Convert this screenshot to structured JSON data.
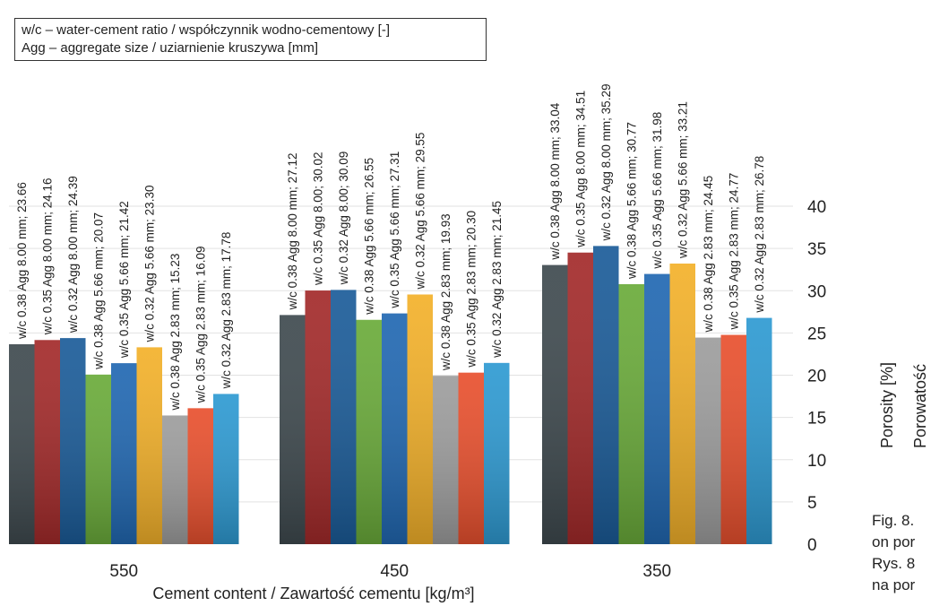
{
  "legend_box": {
    "line1": "w/c – water-cement ratio / współczynnik wodno-cementowy [-]",
    "line2": "Agg – aggregate size / uziarnienie kruszywa [mm]"
  },
  "chart_data": {
    "type": "bar",
    "xlabel": "Cement content / Zawartość cementu [kg/m³]",
    "ylabel_lines": [
      "Porosity [%]",
      "Porowatość"
    ],
    "ylim": [
      0,
      40
    ],
    "yticks": [
      0,
      5,
      10,
      15,
      20,
      25,
      30,
      35,
      40
    ],
    "grid": true,
    "colors": [
      "#3f4a4f",
      "#a32a2a",
      "#1b5c99",
      "#6aab3a",
      "#2168b2",
      "#f3b12a",
      "#9d9d9d",
      "#e8502e",
      "#2e9ad2"
    ],
    "groups": [
      {
        "category": "550",
        "bars": [
          {
            "label": "w/c 0.38 Agg 8.00 mm; 23.66",
            "value": 23.66
          },
          {
            "label": "w/c 0.35 Agg 8.00 mm; 24.16",
            "value": 24.16
          },
          {
            "label": "w/c 0.32 Agg 8.00 mm; 24.39",
            "value": 24.39
          },
          {
            "label": "w/c 0.38 Agg 5.66 mm; 20.07",
            "value": 20.07
          },
          {
            "label": "w/c 0.35 Agg 5.66 mm; 21.42",
            "value": 21.42
          },
          {
            "label": "w/c 0.32 Agg 5.66 mm; 23.30",
            "value": 23.3
          },
          {
            "label": "w/c 0.38 Agg 2.83 mm; 15.23",
            "value": 15.23
          },
          {
            "label": "w/c 0.35 Agg 2.83 mm; 16.09",
            "value": 16.09
          },
          {
            "label": "w/c 0.32 Agg 2.83 mm; 17.78",
            "value": 17.78
          }
        ]
      },
      {
        "category": "450",
        "bars": [
          {
            "label": "w/c 0.38 Agg 8.00 mm; 27.12",
            "value": 27.12
          },
          {
            "label": "w/c 0.35 Agg 8.00; 30.02",
            "value": 30.02
          },
          {
            "label": "w/c 0.32 Agg 8.00; 30.09",
            "value": 30.09
          },
          {
            "label": "w/c 0.38 Agg 5.66 mm; 26.55",
            "value": 26.55
          },
          {
            "label": "w/c 0.35 Agg 5.66 mm; 27.31",
            "value": 27.31
          },
          {
            "label": "w/c 0.32 Agg 5.66 mm; 29.55",
            "value": 29.55
          },
          {
            "label": "w/c 0.38 Agg 2.83 mm; 19.93",
            "value": 19.93
          },
          {
            "label": "w/c 0.35 Agg 2.83 mm; 20.30",
            "value": 20.3
          },
          {
            "label": "w/c 0.32 Agg 2.83 mm; 21.45",
            "value": 21.45
          }
        ]
      },
      {
        "category": "350",
        "bars": [
          {
            "label": "w/c 0.38 Agg 8.00 mm; 33.04",
            "value": 33.04
          },
          {
            "label": "w/c 0.35 Agg 8.00 mm; 34.51",
            "value": 34.51
          },
          {
            "label": "w/c 0.32 Agg 8.00 mm; 35.29",
            "value": 35.29
          },
          {
            "label": "w/c 0.38 Agg 5.66 mm; 30.77",
            "value": 30.77
          },
          {
            "label": "w/c 0.35 Agg 5.66 mm; 31.98",
            "value": 31.98
          },
          {
            "label": "w/c 0.32 Agg 5.66 mm; 33.21",
            "value": 33.21
          },
          {
            "label": "w/c 0.38 Agg 2.83 mm; 24.45",
            "value": 24.45
          },
          {
            "label": "w/c 0.35 Agg 2.83 mm; 24.77",
            "value": 24.77
          },
          {
            "label": "w/c 0.32 Agg 2.83 mm; 26.78",
            "value": 26.78
          }
        ]
      }
    ]
  },
  "figure_caption": {
    "line1": "Fig. 8.",
    "line2": "on por",
    "line3": "Rys. 8",
    "line4": "na por"
  }
}
